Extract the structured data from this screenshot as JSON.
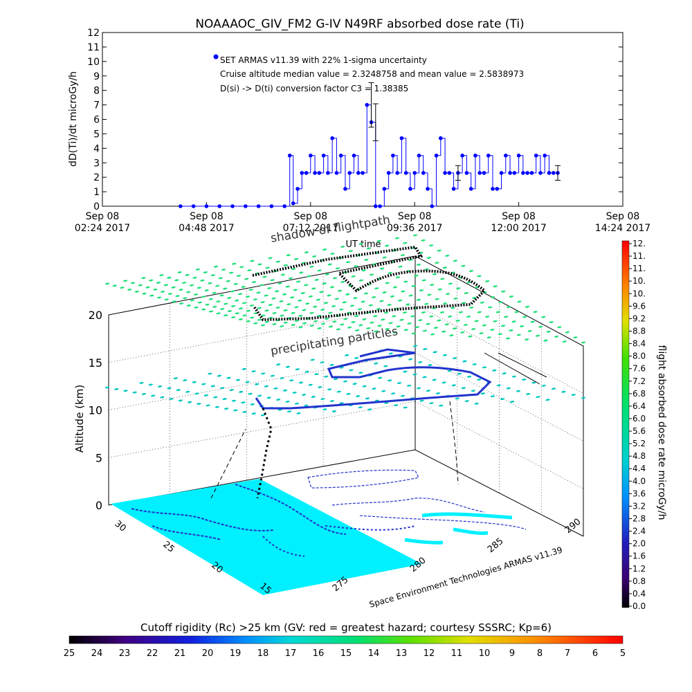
{
  "colors": {
    "series": "#0000ff",
    "map_fill": "#00f0ff",
    "grid_green": "#22e07a",
    "track_hi": "#000000",
    "track_mid": "#2233cc",
    "track_low": "#00aaee"
  },
  "chart_data": [
    {
      "type": "scatter",
      "title": "NOAAAOC_GIV_FM2 G-IV    N49RF  absorbed dose rate (Ti)",
      "ylabel": "dD(Ti)/dt microGy/h",
      "xlabel": "UT time",
      "ylim": [
        0,
        12
      ],
      "yticks": [
        "0",
        "1",
        "2",
        "3",
        "4",
        "5",
        "6",
        "7",
        "8",
        "9",
        "10",
        "11",
        "12"
      ],
      "xticks": [
        {
          "line1": "Sep 08",
          "line2": "02:24 2017"
        },
        {
          "line1": "Sep 08",
          "line2": "04:48 2017"
        },
        {
          "line1": "Sep 08",
          "line2": "07:12 2017"
        },
        {
          "line1": "Sep 08",
          "line2": "09:36 2017"
        },
        {
          "line1": "Sep 08",
          "line2": "12:00 2017"
        },
        {
          "line1": "Sep 08",
          "line2": "14:24 2017"
        }
      ],
      "xlim_hours": [
        2.4,
        14.4
      ],
      "annotations": [
        "SET ARMAS v11.39 with 22% 1-sigma uncertainty",
        "Cruise altitude median value = 2.3248758 and mean value = 2.5838973",
        "D(si) -> D(ti) conversion factor C3 = 1.38385"
      ],
      "series": [
        {
          "name": "SET ARMAS v11.39 with 22% 1-sigma uncertainty",
          "x_hours": [
            4.2,
            4.5,
            4.8,
            5.1,
            5.4,
            5.7,
            6.0,
            6.3,
            6.6,
            6.72,
            6.8,
            6.9,
            7.0,
            7.1,
            7.2,
            7.3,
            7.4,
            7.5,
            7.6,
            7.7,
            7.8,
            7.9,
            8.0,
            8.1,
            8.2,
            8.3,
            8.4,
            8.5,
            8.6,
            8.7,
            8.8,
            8.9,
            9.0,
            9.1,
            9.2,
            9.3,
            9.4,
            9.5,
            9.6,
            9.7,
            9.8,
            9.9,
            10.0,
            10.1,
            10.2,
            10.3,
            10.4,
            10.5,
            10.6,
            10.7,
            10.8,
            10.9,
            11.0,
            11.1,
            11.2,
            11.3,
            11.4,
            11.5,
            11.6,
            11.7,
            11.8,
            11.9,
            12.0,
            12.1,
            12.2,
            12.3,
            12.4,
            12.5,
            12.6,
            12.7,
            12.8,
            12.9
          ],
          "y": [
            0,
            0,
            0,
            0,
            0,
            0,
            0,
            0,
            0,
            3.5,
            0.2,
            1.2,
            2.3,
            2.3,
            3.5,
            2.3,
            2.3,
            3.5,
            2.3,
            4.7,
            2.3,
            3.5,
            1.2,
            2.3,
            3.5,
            2.3,
            2.3,
            7.0,
            5.8,
            0,
            0,
            1.2,
            2.3,
            3.5,
            2.3,
            4.7,
            2.3,
            1.2,
            2.3,
            3.5,
            2.3,
            1.2,
            0,
            3.5,
            4.7,
            2.3,
            2.3,
            1.2,
            2.3,
            3.5,
            2.3,
            1.2,
            3.5,
            2.3,
            2.3,
            3.5,
            1.2,
            1.2,
            2.3,
            3.5,
            2.3,
            2.3,
            3.5,
            2.3,
            2.3,
            2.3,
            3.5,
            2.3,
            3.5,
            2.3,
            2.3,
            2.3
          ]
        }
      ]
    },
    {
      "type": "scatter",
      "subtitle_labels": [
        "shadow of flightpath",
        "precipitating particles"
      ],
      "zlabel": "Altitude (km)",
      "zticks": [
        "0",
        "5",
        "10",
        "15",
        "20"
      ],
      "lat_ticks": [
        "30",
        "25",
        "20",
        "15"
      ],
      "lon_ticks": [
        "275",
        "280",
        "285",
        "290"
      ],
      "credit": "Space Environment Technologies ARMAS v11.39",
      "colorbar": {
        "label": "flight absorbed dose rate microGy/h",
        "ticks": [
          "0.0",
          "0.4",
          "0.8",
          "1.2",
          "1.6",
          "2.0",
          "2.4",
          "2.8",
          "3.2",
          "3.6",
          "4.0",
          "4.4",
          "4.8",
          "5.2",
          "5.6",
          "6.0",
          "6.4",
          "6.8",
          "7.2",
          "7.6",
          "8.0",
          "8.4",
          "8.8",
          "9.2",
          "9.6",
          "10.",
          "10.",
          "11.",
          "11.",
          "12."
        ]
      },
      "rigidity_bar": {
        "title": "Cutoff rigidity (Rc) >25 km (GV: red = greatest hazard; courtesy SSSRC; Kp=6)",
        "ticks": [
          "25",
          "24",
          "23",
          "22",
          "21",
          "20",
          "19",
          "18",
          "17",
          "16",
          "15",
          "14",
          "13",
          "12",
          "11",
          "10",
          "9",
          "8",
          "7",
          "6",
          "5"
        ]
      }
    }
  ]
}
